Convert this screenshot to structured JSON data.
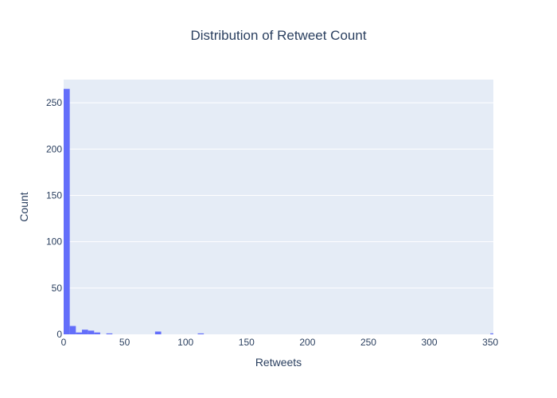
{
  "chart_data": {
    "type": "bar",
    "title": "Distribution of Retweet Count",
    "xlabel": "Retweets",
    "ylabel": "Count",
    "xlim": [
      0,
      352.5
    ],
    "ylim": [
      0,
      275
    ],
    "x_ticks": [
      0,
      50,
      100,
      150,
      200,
      250,
      300,
      350
    ],
    "y_ticks": [
      0,
      50,
      100,
      150,
      200,
      250
    ],
    "grid": true,
    "legend": "none",
    "bar_color": "#636efa",
    "plot_background": "#e5ecf6",
    "bin_width": 5,
    "bins": [
      {
        "start": 0,
        "end": 5,
        "count": 265
      },
      {
        "start": 5,
        "end": 10,
        "count": 9
      },
      {
        "start": 10,
        "end": 15,
        "count": 2
      },
      {
        "start": 15,
        "end": 20,
        "count": 5
      },
      {
        "start": 20,
        "end": 25,
        "count": 4
      },
      {
        "start": 25,
        "end": 30,
        "count": 2
      },
      {
        "start": 35,
        "end": 40,
        "count": 1
      },
      {
        "start": 75,
        "end": 80,
        "count": 3
      },
      {
        "start": 110,
        "end": 115,
        "count": 1
      },
      {
        "start": 350,
        "end": 355,
        "count": 1
      }
    ]
  }
}
